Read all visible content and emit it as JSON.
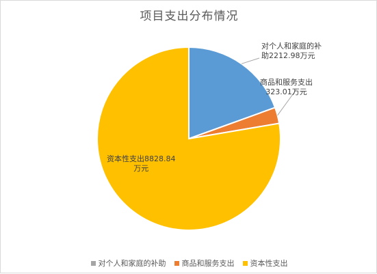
{
  "chart_data": {
    "type": "pie",
    "title": "项目支出分布情况",
    "categories": [
      "对个人和家庭的补助",
      "商品和服务支出",
      "资本性支出"
    ],
    "values": [
      2212.98,
      323.01,
      8828.84
    ],
    "unit": "万元",
    "data_labels": [
      [
        "对个人和家庭的补",
        "助2212.98万元"
      ],
      [
        "商品和服务支出",
        "323.01万元"
      ],
      [
        "资本性支出8828.84",
        "万元"
      ]
    ],
    "colors": [
      "#5b9bd5",
      "#ed7d31",
      "#ffc000"
    ],
    "legend_colors": [
      "#a5a5a5",
      "#ed7d31",
      "#ffc000"
    ],
    "legend_position": "bottom",
    "start_angle": "12 o'clock",
    "direction": "clockwise"
  }
}
